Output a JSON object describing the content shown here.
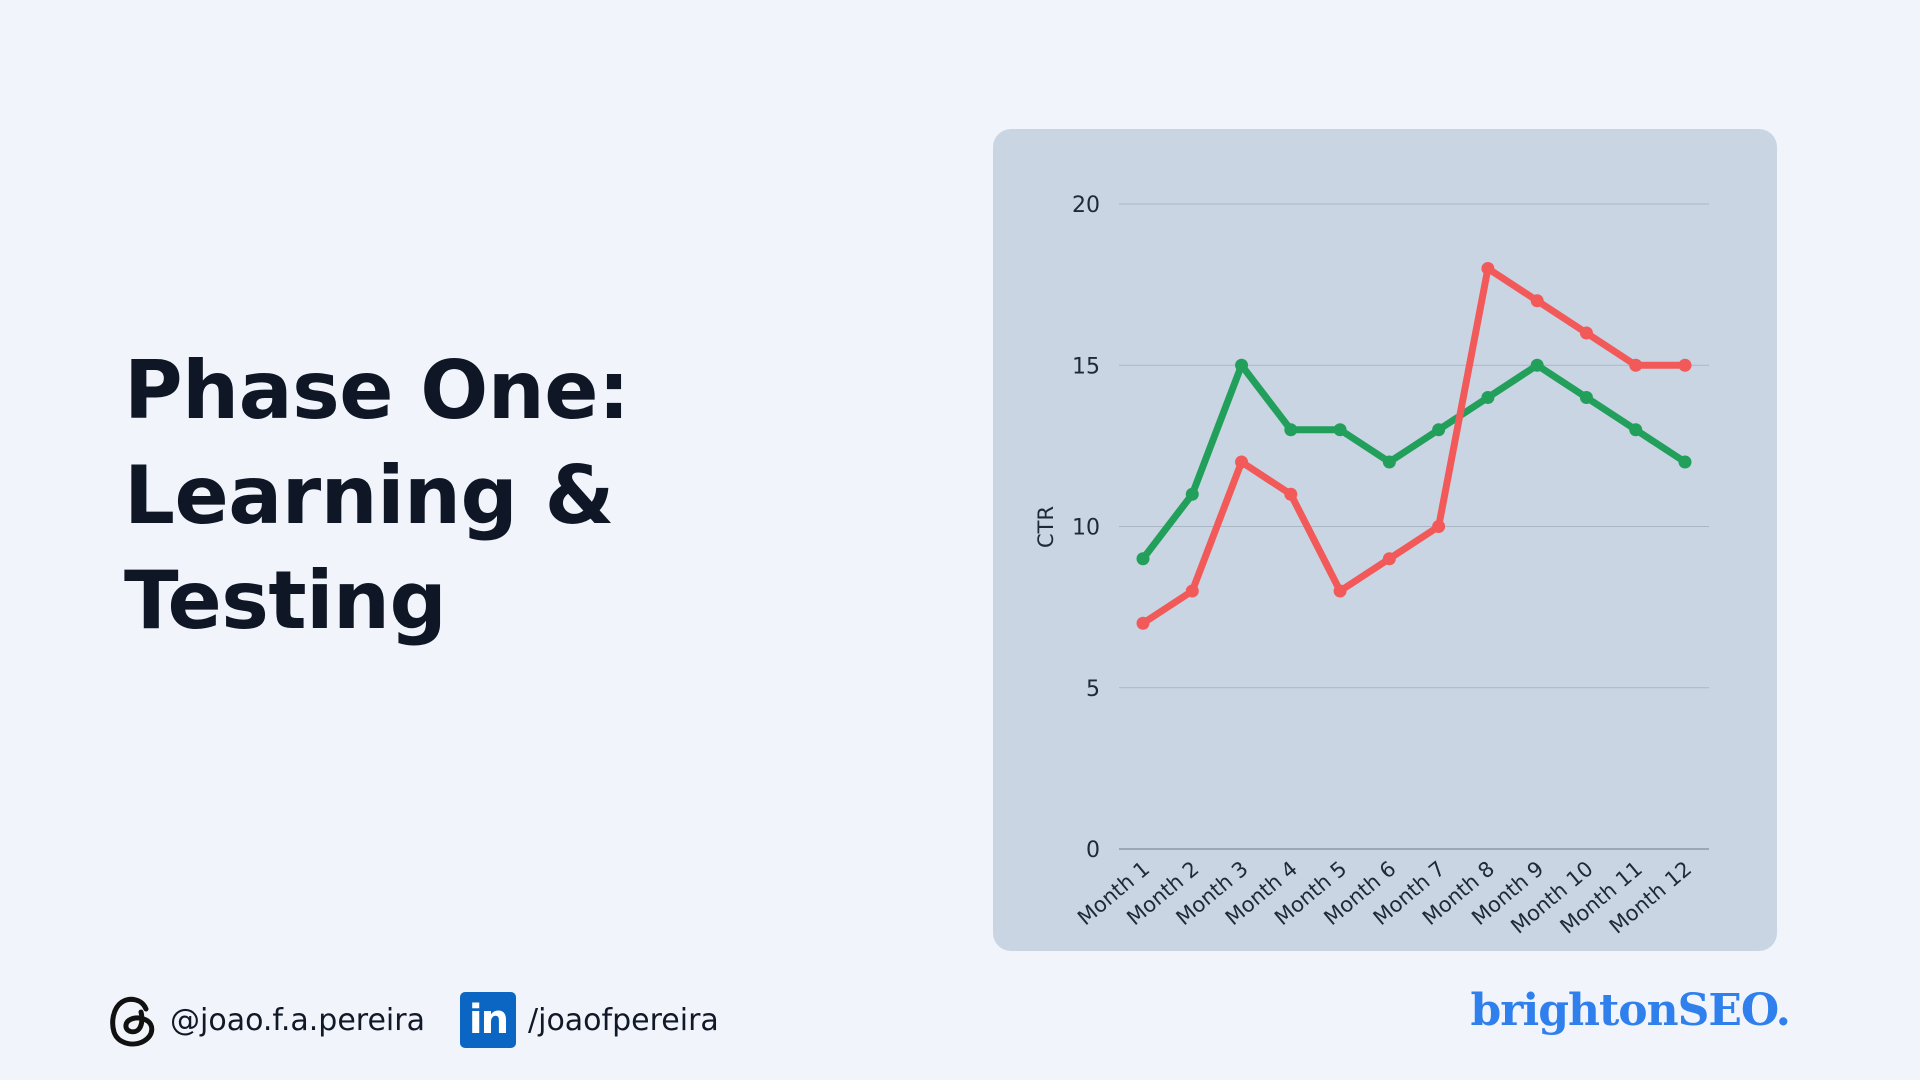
{
  "slide": {
    "title_lines": [
      "Phase One:",
      "Learning &",
      "Testing"
    ]
  },
  "footer": {
    "threads_handle": "@joao.f.a.pereira",
    "threads_icon": "threads-icon",
    "linkedin_handle": "/joaofpereira",
    "linkedin_icon": "linkedin-icon",
    "linkedin_icon_text": "in",
    "brand": "brightonSEO."
  },
  "colors": {
    "background": "#f1f5fb",
    "chart_card": "#c9d5e2",
    "series_green": "#22a05b",
    "series_red": "#f25a5a",
    "brand": "#2f80ed",
    "linkedin": "#0a66c2"
  },
  "chart_data": {
    "type": "line",
    "ylabel": "CTR",
    "xlabel": "",
    "ylim": [
      0,
      20
    ],
    "yticks": [
      0,
      5,
      10,
      15,
      20
    ],
    "grid": true,
    "categories": [
      "Month 1",
      "Month 2",
      "Month 3",
      "Month 4",
      "Month 5",
      "Month 6",
      "Month 7",
      "Month 8",
      "Month 9",
      "Month 10",
      "Month 11",
      "Month 12"
    ],
    "series": [
      {
        "color": "#22a05b",
        "values": [
          9,
          11,
          15,
          13,
          13,
          12,
          13,
          14,
          15,
          14,
          13,
          12
        ]
      },
      {
        "color": "#f25a5a",
        "values": [
          7,
          8,
          12,
          11,
          8,
          9,
          10,
          18,
          17,
          16,
          15,
          15
        ]
      }
    ]
  }
}
